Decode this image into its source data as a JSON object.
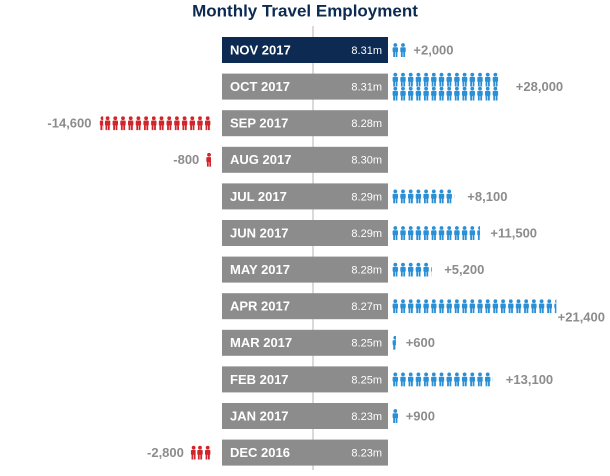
{
  "chart_data": {
    "type": "pictograph",
    "title": "Monthly Travel Employment",
    "categories": [
      "NOV 2017",
      "OCT 2017",
      "SEP 2017",
      "AUG 2017",
      "JUL 2017",
      "JUN 2017",
      "MAY 2017",
      "APR 2017",
      "MAR 2017",
      "FEB 2017",
      "JAN 2017",
      "DEC 2016"
    ],
    "employment": {
      "values": [
        8.31,
        8.31,
        8.28,
        8.3,
        8.29,
        8.29,
        8.28,
        8.27,
        8.25,
        8.25,
        8.23,
        8.23
      ],
      "value_labels": [
        "8.31m",
        "8.31m",
        "8.28m",
        "8.30m",
        "8.29m",
        "8.29m",
        "8.28m",
        "8.27m",
        "8.25m",
        "8.25m",
        "8.23m",
        "8.23m"
      ],
      "color": "#8c8c8c",
      "highlight_color": "#0d2a52"
    },
    "change": {
      "values": [
        2000,
        28000,
        -14600,
        -800,
        8100,
        11500,
        5200,
        21400,
        600,
        13100,
        900,
        -2800
      ],
      "value_labels": [
        "+2,000",
        "+28,000",
        "-14,600",
        "-800",
        "+8,100",
        "+11,500",
        "+5,200",
        "+21,400",
        "+600",
        "+13,100",
        "+900",
        "-2,800"
      ],
      "icon_unit": 1000,
      "positive_color": "#2b8fd6",
      "negative_color": "#d0262b"
    }
  }
}
